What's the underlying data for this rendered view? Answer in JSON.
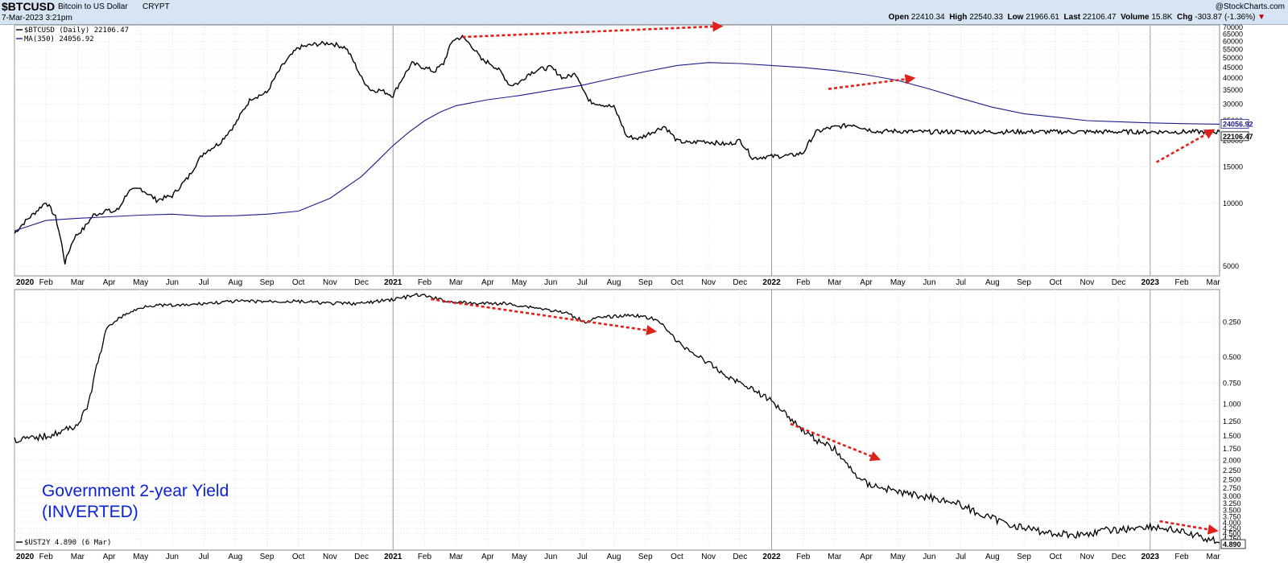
{
  "header": {
    "symbol": "$BTCUSD",
    "name": "Bitcoin to US Dollar",
    "exchange": "CRYPT",
    "date": "7-Mar-2023 3:21pm",
    "open_label": "Open",
    "open": "22410.34",
    "high_label": "High",
    "high": "22540.33",
    "low_label": "Low",
    "low": "21966.61",
    "last_label": "Last",
    "last": "22106.47",
    "volume_label": "Volume",
    "volume": "15.8K",
    "chg_label": "Chg",
    "chg": "-303.87 (-1.36%)",
    "brand": "@StockCharts.com"
  },
  "chart_data": [
    {
      "type": "line",
      "scale": "log",
      "legend": [
        "$BTCUSD (Daily) 22106.47",
        "MA(350) 24056.92"
      ],
      "y_ticks": [
        5000,
        10000,
        15000,
        20000,
        25000,
        30000,
        35000,
        40000,
        45000,
        50000,
        55000,
        60000,
        65000,
        70000
      ],
      "ylim": [
        4500,
        72000
      ],
      "last_labels": [
        "24056.92",
        "22106.47"
      ],
      "x_ticks": [
        "2020",
        "Feb",
        "Mar",
        "Apr",
        "May",
        "Jun",
        "Jul",
        "Aug",
        "Sep",
        "Oct",
        "Nov",
        "Dec",
        "2021",
        "Feb",
        "Mar",
        "Apr",
        "May",
        "Jun",
        "Jul",
        "Aug",
        "Sep",
        "Oct",
        "Nov",
        "Dec",
        "2022",
        "Feb",
        "Mar",
        "Apr",
        "May",
        "Jun",
        "Jul",
        "Aug",
        "Sep",
        "Oct",
        "Nov",
        "Dec",
        "2023",
        "Feb",
        "Mar"
      ],
      "series": [
        {
          "name": "$BTCUSD",
          "color": "#000000",
          "x": [
            0,
            0.3,
            0.7,
            1.0,
            1.3,
            1.6,
            1.9,
            2.2,
            2.5,
            2.7,
            2.9,
            3.1,
            3.3,
            3.6,
            4.0,
            4.5,
            5.0,
            5.5,
            6.0,
            6.5,
            7.0,
            7.5,
            8.0,
            8.5,
            9.0,
            9.5,
            10.0,
            10.5,
            11.0,
            11.3,
            11.6,
            12.0,
            12.3,
            12.6,
            13.0,
            13.3,
            13.6,
            13.9,
            14.2,
            14.5,
            14.8,
            15.1,
            15.4,
            15.7,
            16.0,
            16.3,
            16.6,
            17.0,
            17.4,
            17.8,
            18.2,
            18.6,
            19.0,
            19.4,
            19.8,
            20.2,
            20.6,
            21.0,
            21.4,
            21.8,
            22.2,
            22.6,
            23.0,
            23.4,
            23.8,
            24.2,
            24.6,
            25.0,
            25.4,
            25.8,
            26.2,
            26.6,
            27.0,
            27.4,
            27.8,
            28.2,
            28.6,
            29.0,
            29.4,
            29.8,
            30.2,
            30.6,
            31.0,
            31.4,
            31.8,
            32.2,
            32.6,
            33.0,
            33.4,
            33.8,
            34.2,
            34.6,
            35.0,
            35.4,
            35.8,
            36.2,
            36.5,
            36.8,
            37.1,
            37.4,
            37.7,
            38.0,
            38.2
          ],
          "y": [
            7200,
            8100,
            9200,
            10200,
            8600,
            5200,
            6900,
            7600,
            8800,
            9000,
            9300,
            9100,
            9400,
            11400,
            11800,
            10400,
            10900,
            13300,
            17500,
            19500,
            24000,
            32000,
            34000,
            46000,
            56000,
            58000,
            59000,
            56000,
            40000,
            35000,
            35000,
            33000,
            40000,
            47000,
            45000,
            43000,
            47000,
            61000,
            63000,
            57000,
            49000,
            47000,
            43000,
            37000,
            38000,
            42000,
            44000,
            45000,
            40000,
            42000,
            31000,
            30000,
            29000,
            21000,
            20500,
            22000,
            23500,
            20000,
            19500,
            20000,
            19600,
            19200,
            20100,
            16500,
            16800,
            16900,
            17000,
            17500,
            22000,
            23000,
            23500,
            24000,
            22800,
            22106.47,
            22300,
            22200,
            22100,
            22050,
            22106.47,
            22106.47,
            22106.47,
            22106.47,
            22106.47,
            22106.47,
            22106.47,
            22106.47,
            22106.47,
            22106.47,
            22106.47,
            22106.47,
            22106.47,
            22106.47,
            22106.47,
            22106.47,
            22106.47,
            22106.47,
            22106.47,
            22106.47,
            22106.47,
            22106.47,
            22106.47,
            22106.47,
            22106.47
          ]
        },
        {
          "name": "MA(350)",
          "color": "#1c1c8c",
          "x": [
            0,
            1,
            2,
            3,
            4,
            5,
            6,
            7,
            8,
            9,
            10,
            11,
            11.5,
            12,
            12.5,
            13,
            13.5,
            14,
            15,
            16,
            17,
            18,
            19,
            20,
            21,
            22,
            23,
            24,
            25,
            26,
            27,
            28,
            29,
            30,
            31,
            32,
            33,
            34,
            35,
            36,
            37,
            38.2
          ],
          "y": [
            7400,
            8300,
            8500,
            8650,
            8800,
            8900,
            8700,
            8750,
            8900,
            9200,
            10600,
            13500,
            16000,
            19000,
            22000,
            25000,
            27500,
            29500,
            31500,
            33000,
            35000,
            37000,
            40000,
            43000,
            46000,
            47500,
            47000,
            46000,
            45000,
            43500,
            41500,
            39000,
            35500,
            32000,
            29000,
            27000,
            26000,
            25000,
            24700,
            24400,
            24200,
            24056.92
          ]
        }
      ]
    },
    {
      "type": "line",
      "scale": "inverted",
      "legend": [
        "$UST2Y 4.890 (6 Mar)"
      ],
      "y_ticks": [
        "0.250",
        "0.500",
        "0.750",
        "1.000",
        "1.250",
        "1.500",
        "1.750",
        "2.000",
        "2.250",
        "2.500",
        "2.750",
        "3.000",
        "3.250",
        "3.500",
        "3.750",
        "4.000",
        "4.250",
        "4.500",
        "4.750"
      ],
      "last_label": "4.890",
      "x_ticks": [
        "2020",
        "Feb",
        "Mar",
        "Apr",
        "May",
        "Jun",
        "Jul",
        "Aug",
        "Sep",
        "Oct",
        "Nov",
        "Dec",
        "2021",
        "Feb",
        "Mar",
        "Apr",
        "May",
        "Jun",
        "Jul",
        "Aug",
        "Sep",
        "Oct",
        "Nov",
        "Dec",
        "2022",
        "Feb",
        "Mar",
        "Apr",
        "May",
        "Jun",
        "Jul",
        "Aug",
        "Sep",
        "Oct",
        "Nov",
        "Dec",
        "2023",
        "Feb",
        "Mar"
      ],
      "annotation": [
        "Government 2-year Yield",
        "(INVERTED)"
      ],
      "series": [
        {
          "name": "$UST2Y",
          "color": "#000000",
          "x": [
            0,
            0.5,
            1.0,
            1.5,
            2.0,
            2.3,
            2.6,
            2.9,
            3.2,
            3.6,
            4.2,
            4.8,
            5.4,
            6.0,
            7.0,
            8.0,
            9.0,
            10.0,
            11.0,
            12.0,
            12.8,
            13.2,
            13.7,
            14.5,
            15.5,
            16.5,
            17.5,
            18.1,
            18.4,
            18.9,
            19.6,
            20.2,
            20.6,
            21.0,
            21.5,
            22.0,
            22.6,
            23.3,
            24.0,
            24.4,
            24.9,
            25.5,
            26.0,
            26.6,
            27.0,
            27.6,
            28.2,
            28.8,
            29.4,
            30.0,
            30.7,
            31.4,
            32.2,
            33.0,
            33.8,
            34.6,
            35.2,
            35.8,
            36.5,
            37.2,
            37.8,
            38.2
          ],
          "y": [
            1.57,
            1.55,
            1.5,
            1.42,
            1.3,
            1.05,
            0.58,
            0.3,
            0.24,
            0.2,
            0.16,
            0.16,
            0.16,
            0.15,
            0.14,
            0.14,
            0.14,
            0.15,
            0.15,
            0.13,
            0.11,
            0.12,
            0.14,
            0.15,
            0.15,
            0.17,
            0.2,
            0.25,
            0.23,
            0.22,
            0.21,
            0.23,
            0.27,
            0.38,
            0.46,
            0.55,
            0.68,
            0.79,
            0.96,
            1.1,
            1.35,
            1.6,
            1.75,
            2.3,
            2.6,
            2.75,
            2.9,
            3.0,
            3.1,
            3.3,
            3.7,
            4.0,
            4.3,
            4.5,
            4.55,
            4.35,
            4.3,
            4.15,
            4.25,
            4.5,
            4.75,
            4.89
          ]
        }
      ]
    }
  ],
  "arrows_color": "#e0201a"
}
